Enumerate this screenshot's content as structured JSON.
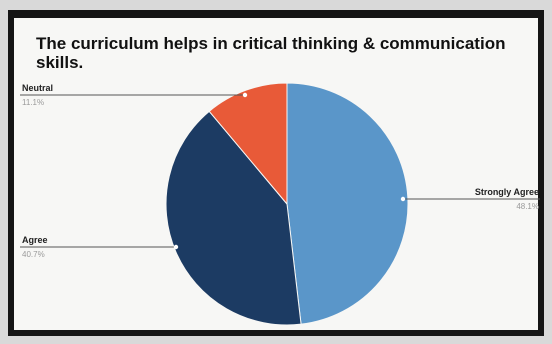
{
  "chart_data": {
    "type": "pie",
    "title": "The curriculum helps in critical thinking & communication skills.",
    "slices": [
      {
        "label": "Strongly Agree",
        "value": 48.1,
        "pct_label": "48.1%",
        "color": "#5a96c9"
      },
      {
        "label": "Agree",
        "value": 40.7,
        "pct_label": "40.7%",
        "color": "#1c3b63"
      },
      {
        "label": "Neutral",
        "value": 11.1,
        "pct_label": "11.1%",
        "color": "#e85a38"
      }
    ]
  }
}
